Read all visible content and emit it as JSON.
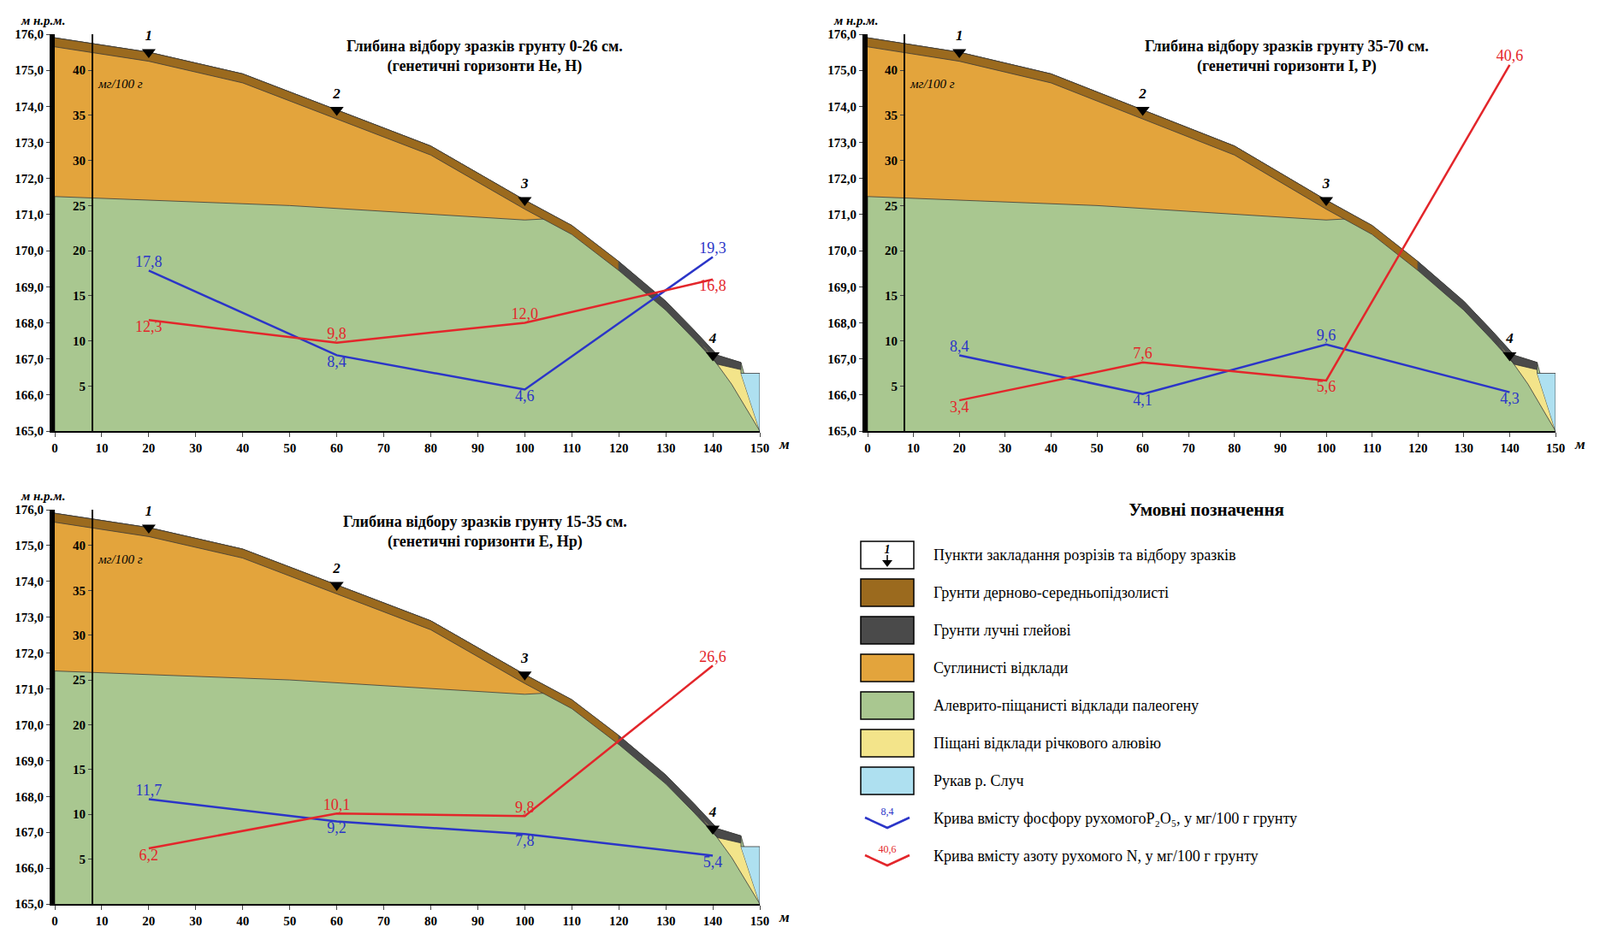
{
  "chart_data": [
    {
      "type": "line",
      "title": "Глибина відбору зразків грунту 0-26 см.",
      "subtitle": "(генетичні горизонти He, H)",
      "x": [
        20,
        60,
        100,
        140
      ],
      "series": [
        {
          "name": "Крива вмісту фосфору рухомогоP₂O₅, у мг/100 г грунту",
          "color": "#2b35c8",
          "axis": "y2",
          "values": [
            17.8,
            8.4,
            4.6,
            19.3
          ],
          "value_labels": [
            "17,8",
            "8,4",
            "4,6",
            "19,3"
          ]
        },
        {
          "name": "Крива вмісту азоту рухомого N, у мг/100 г грунту",
          "color": "#e3262b",
          "axis": "y2",
          "values": [
            12.3,
            9.8,
            12.0,
            16.8
          ],
          "value_labels": [
            "12,3",
            "9,8",
            "12,0",
            "16,8"
          ]
        }
      ],
      "data_labels": true,
      "x_label": "м",
      "xlim": [
        0,
        150
      ],
      "xticks": [
        0,
        10,
        20,
        30,
        40,
        50,
        60,
        70,
        80,
        90,
        100,
        110,
        120,
        130,
        140,
        150
      ],
      "y_label": "м н.р.м.",
      "ylim": [
        165,
        176
      ],
      "yticks": [
        {
          "value": 165,
          "label": "165,0"
        },
        {
          "value": 166,
          "label": "166,0"
        },
        {
          "value": 167,
          "label": "167,0"
        },
        {
          "value": 168,
          "label": "168,0"
        },
        {
          "value": 169,
          "label": "169,0"
        },
        {
          "value": 170,
          "label": "170,0"
        },
        {
          "value": 171,
          "label": "171,0"
        },
        {
          "value": 172,
          "label": "172,0"
        },
        {
          "value": 173,
          "label": "173,0"
        },
        {
          "value": 174,
          "label": "174,0"
        },
        {
          "value": 175,
          "label": "175,0"
        },
        {
          "value": 176,
          "label": "176,0"
        }
      ],
      "y2_label": "мг/100 г",
      "y2lim": [
        0,
        44
      ],
      "y2ticks": [
        5,
        10,
        15,
        20,
        25,
        30,
        35,
        40
      ],
      "grid": false
    },
    {
      "type": "line",
      "title": "Глибина відбору зразків грунту 35-70 см.",
      "subtitle": "(генетичні горизонти I, P)",
      "x": [
        20,
        60,
        100,
        140
      ],
      "series": [
        {
          "name": "Крива вмісту фосфору рухомогоP₂O₅, у мг/100 г грунту",
          "color": "#2b35c8",
          "axis": "y2",
          "values": [
            8.4,
            4.1,
            9.6,
            4.3
          ],
          "value_labels": [
            "8,4",
            "4,1",
            "9,6",
            "4,3"
          ]
        },
        {
          "name": "Крива вмісту азоту рухомого N, у мг/100 г грунту",
          "color": "#e3262b",
          "axis": "y2",
          "values": [
            3.4,
            7.6,
            5.6,
            40.6
          ],
          "value_labels": [
            "3,4",
            "7,6",
            "5,6",
            "40,6"
          ]
        }
      ],
      "data_labels": true,
      "x_label": "м",
      "xlim": [
        0,
        150
      ],
      "xticks": [
        0,
        10,
        20,
        30,
        40,
        50,
        60,
        70,
        80,
        90,
        100,
        110,
        120,
        130,
        140,
        150
      ],
      "y_label": "м н.р.м.",
      "ylim": [
        165,
        176
      ],
      "yticks": [
        {
          "value": 165,
          "label": "165,0"
        },
        {
          "value": 166,
          "label": "166,0"
        },
        {
          "value": 167,
          "label": "167,0"
        },
        {
          "value": 168,
          "label": "168,0"
        },
        {
          "value": 169,
          "label": "169,0"
        },
        {
          "value": 170,
          "label": "170,0"
        },
        {
          "value": 171,
          "label": "171,0"
        },
        {
          "value": 172,
          "label": "172,0"
        },
        {
          "value": 173,
          "label": "173,0"
        },
        {
          "value": 174,
          "label": "174,0"
        },
        {
          "value": 175,
          "label": "175,0"
        },
        {
          "value": 176,
          "label": "176,0"
        }
      ],
      "y2_label": "мг/100 г",
      "y2lim": [
        0,
        44
      ],
      "y2ticks": [
        5,
        10,
        15,
        20,
        25,
        30,
        35,
        40
      ],
      "grid": false
    },
    {
      "type": "line",
      "title": "Глибина відбору зразків грунту 15-35 см.",
      "subtitle": "(генетичні горизонти E, Hp)",
      "x": [
        20,
        60,
        100,
        140
      ],
      "series": [
        {
          "name": "Крива вмісту фосфору рухомогоP₂O₅, у мг/100 г грунту",
          "color": "#2b35c8",
          "axis": "y2",
          "values": [
            11.7,
            9.2,
            7.8,
            5.4
          ],
          "value_labels": [
            "11,7",
            "9,2",
            "7,8",
            "5,4"
          ]
        },
        {
          "name": "Крива вмісту азоту рухомого N, у мг/100 г грунту",
          "color": "#e3262b",
          "axis": "y2",
          "values": [
            6.2,
            10.1,
            9.8,
            26.6
          ],
          "value_labels": [
            "6,2",
            "10,1",
            "9,8",
            "26,6"
          ]
        }
      ],
      "data_labels": true,
      "x_label": "м",
      "xlim": [
        0,
        150
      ],
      "xticks": [
        0,
        10,
        20,
        30,
        40,
        50,
        60,
        70,
        80,
        90,
        100,
        110,
        120,
        130,
        140,
        150
      ],
      "y_label": "м н.р.м.",
      "ylim": [
        165,
        176
      ],
      "yticks": [
        {
          "value": 165,
          "label": "165,0"
        },
        {
          "value": 166,
          "label": "166,0"
        },
        {
          "value": 167,
          "label": "167,0"
        },
        {
          "value": 168,
          "label": "168,0"
        },
        {
          "value": 169,
          "label": "169,0"
        },
        {
          "value": 170,
          "label": "170,0"
        },
        {
          "value": 171,
          "label": "171,0"
        },
        {
          "value": 172,
          "label": "172,0"
        },
        {
          "value": 173,
          "label": "173,0"
        },
        {
          "value": 174,
          "label": "174,0"
        },
        {
          "value": 175,
          "label": "175,0"
        },
        {
          "value": 176,
          "label": "176,0"
        }
      ],
      "y2_label": "мг/100 г",
      "y2lim": [
        0,
        44
      ],
      "y2ticks": [
        5,
        10,
        15,
        20,
        25,
        30,
        35,
        40
      ],
      "grid": false
    }
  ],
  "cross_section": {
    "points": {
      "name": "Пункти закладання розрізів та відбору зразків",
      "x": [
        20,
        60,
        100,
        140
      ],
      "values": [
        175.5,
        173.9,
        171.4,
        167.1
      ],
      "labels": [
        "1",
        "2",
        "3",
        "4"
      ]
    },
    "layers": [
      {
        "name": "Грунти дерново-середньопідзолисті",
        "color": "#9b6a1e",
        "x": [
          0,
          20,
          40,
          60,
          80,
          100,
          110,
          120,
          120,
          110,
          100,
          80,
          60,
          40,
          20,
          0
        ],
        "values": [
          175.9,
          175.5,
          174.9,
          173.9,
          172.9,
          171.4,
          170.7,
          169.7,
          169.45,
          170.45,
          171.15,
          172.65,
          173.65,
          174.65,
          175.25,
          175.65
        ]
      },
      {
        "name": "Грунти лучні глейові",
        "color": "#4a4a4a",
        "x": [
          120,
          130,
          136,
          141,
          146,
          146,
          141,
          136,
          130,
          120
        ],
        "values": [
          169.7,
          168.6,
          167.8,
          167.1,
          166.9,
          166.7,
          166.85,
          167.55,
          168.35,
          169.45
        ]
      },
      {
        "name": "Суглинисті відклади",
        "color": "#e3a43c",
        "x": [
          0,
          20,
          40,
          60,
          80,
          100,
          107,
          100,
          50,
          0
        ],
        "values": [
          175.9,
          175.5,
          174.9,
          173.9,
          172.9,
          171.4,
          170.9,
          170.85,
          171.25,
          171.5
        ]
      },
      {
        "name": "Алеврито-піщанисті відклади палеогену",
        "color": "#a9c790",
        "x": [
          0,
          0,
          20,
          40,
          60,
          80,
          100,
          110,
          120,
          130,
          136,
          141,
          146,
          150
        ],
        "values": [
          165.0,
          175.9,
          175.5,
          174.9,
          173.9,
          172.9,
          171.4,
          170.7,
          169.7,
          168.6,
          167.8,
          167.1,
          166.9,
          165.0
        ]
      },
      {
        "name": "Піщані відклади річкового алювію",
        "color": "#f3e48a",
        "x": [
          137,
          141,
          146,
          146,
          150,
          144,
          139
        ],
        "values": [
          167.5,
          166.85,
          166.7,
          166.6,
          165.0,
          166.3,
          167.2
        ]
      },
      {
        "name": "Рукав р. Случ",
        "color": "#aee0f0",
        "x": [
          146,
          150,
          150
        ],
        "values": [
          166.6,
          166.6,
          165.0
        ]
      }
    ]
  },
  "legend_panel": {
    "title": "Умовні позначення",
    "curve_samples": [
      "8,4",
      "40,6"
    ]
  }
}
